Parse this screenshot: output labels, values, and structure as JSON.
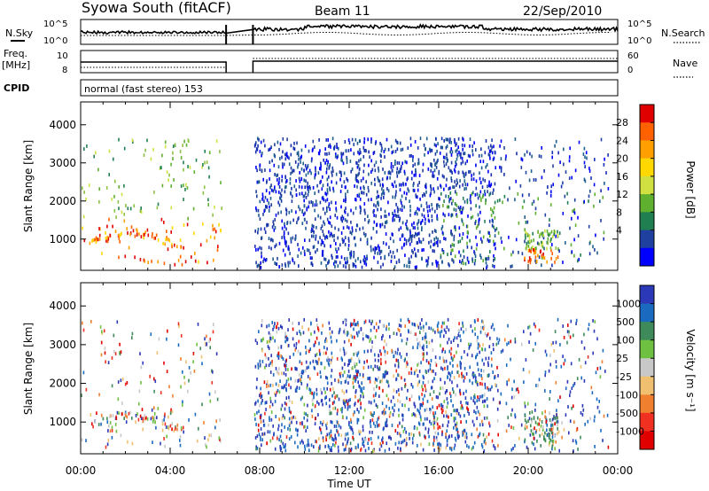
{
  "header": {
    "title": "Syowa South (fitACF)",
    "beam": "Beam 11",
    "date": "22/Sep/2010"
  },
  "top_panel": {
    "nsky_label": "N.Sky",
    "nsky_ticks": [
      "10^5",
      "10^0"
    ],
    "nsearch_label": "N.Search",
    "nsearch_ticks": [
      "10^5",
      "10^0"
    ],
    "freq_label": "Freq.",
    "freq_unit": "[MHz]",
    "freq_ticks": [
      "10",
      "8"
    ],
    "nave_label": "Nave",
    "nave_ticks": [
      "60",
      "0"
    ],
    "cpid_label": "CPID",
    "cpid_text": "normal (fast stereo) 153"
  },
  "chart_data": [
    {
      "type": "heatmap",
      "name": "power",
      "ylabel": "Slant Range [km]",
      "yticks": [
        "1000",
        "2000",
        "3000",
        "4000"
      ],
      "ylim": [
        180,
        4600
      ],
      "xlim_hours": [
        0,
        24
      ],
      "xticks": [
        "00:00",
        "04:00",
        "08:00",
        "12:00",
        "16:00",
        "20:00",
        "00:00"
      ],
      "gap_hours": [
        6.5,
        7.7
      ],
      "colorbar_label": "Power [dB]",
      "colorbar_ticks": [
        "28",
        "24",
        "20",
        "16",
        "12",
        "8",
        "4"
      ],
      "colorbar_colors": [
        "#e00000",
        "#ff6000",
        "#ffa000",
        "#ffd800",
        "#d0e040",
        "#60b030",
        "#1f7f50",
        "#2040a0",
        "#0000ff"
      ]
    },
    {
      "type": "heatmap",
      "name": "velocity",
      "ylabel": "Slant Range [km]",
      "yticks": [
        "1000",
        "2000",
        "3000",
        "4000"
      ],
      "ylim": [
        180,
        4600
      ],
      "xlim_hours": [
        0,
        24
      ],
      "xticks": [
        "00:00",
        "04:00",
        "08:00",
        "12:00",
        "16:00",
        "20:00",
        "00:00"
      ],
      "gap_hours": [
        6.5,
        7.7
      ],
      "colorbar_label": "Velocity [m s⁻¹]",
      "colorbar_ticks": [
        "1000",
        "500",
        "100",
        "25",
        "-25",
        "-100",
        "-500",
        "-1000"
      ],
      "colorbar_colors": [
        "#2b39b8",
        "#1a6ac0",
        "#3f8a5a",
        "#6ec040",
        "#c8c8c8",
        "#f0c070",
        "#f08030",
        "#f03020",
        "#e00000"
      ]
    }
  ],
  "xlabel": "Time UT",
  "colors": {
    "axis": "#000000",
    "background": "#ffffff"
  }
}
